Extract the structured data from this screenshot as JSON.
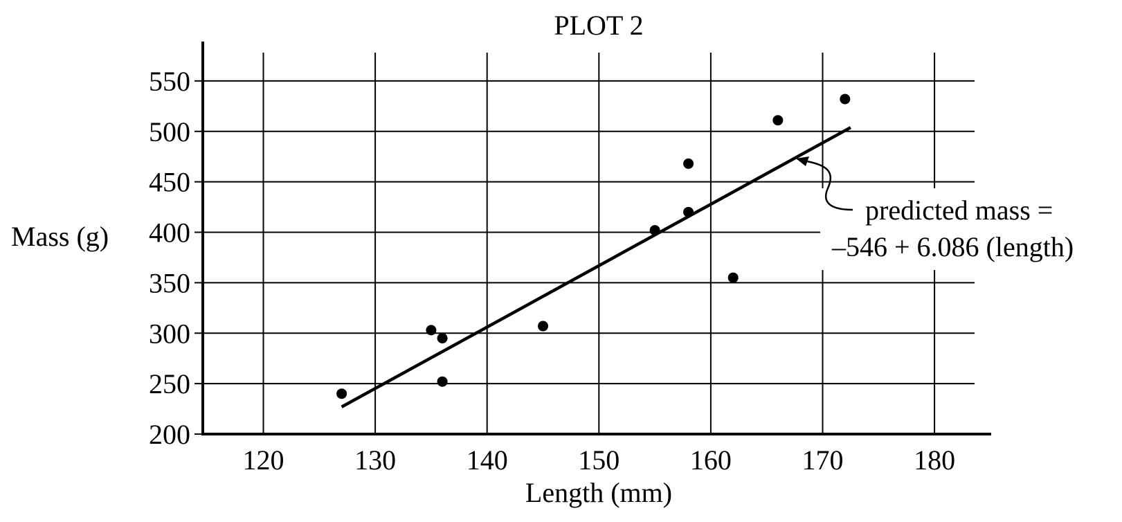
{
  "chart_data": {
    "type": "scatter",
    "title": "PLOT 2",
    "xlabel": "Length (mm)",
    "ylabel": "Mass (g)",
    "xlim": [
      115,
      185
    ],
    "ylim": [
      200,
      575
    ],
    "x_ticks": [
      120,
      130,
      140,
      150,
      160,
      170,
      180
    ],
    "y_ticks": [
      200,
      250,
      300,
      350,
      400,
      450,
      500,
      550
    ],
    "grid": true,
    "points": [
      {
        "x": 127,
        "y": 240
      },
      {
        "x": 135,
        "y": 303
      },
      {
        "x": 136,
        "y": 295
      },
      {
        "x": 136,
        "y": 252
      },
      {
        "x": 145,
        "y": 307
      },
      {
        "x": 155,
        "y": 402
      },
      {
        "x": 158,
        "y": 468
      },
      {
        "x": 158,
        "y": 420
      },
      {
        "x": 162,
        "y": 355
      },
      {
        "x": 166,
        "y": 511
      },
      {
        "x": 172,
        "y": 532
      }
    ],
    "regression": {
      "intercept": -546,
      "slope": 6.086,
      "x_range": [
        127,
        172.5
      ],
      "label_lines": [
        "predicted mass =",
        "–546 + 6.086 (length)"
      ]
    }
  }
}
